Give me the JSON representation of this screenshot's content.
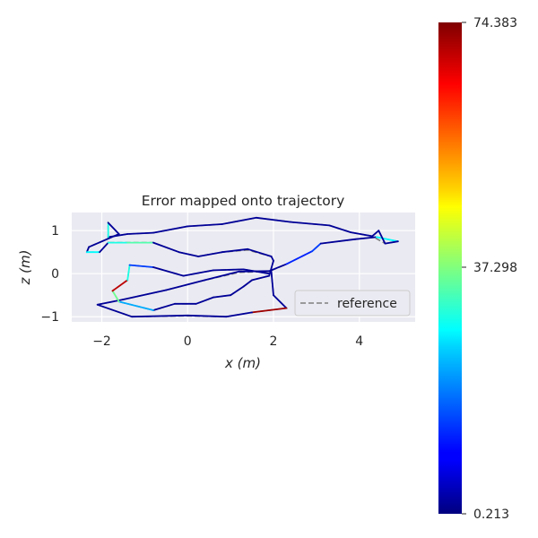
{
  "chart_data": {
    "type": "line",
    "title": "Error mapped onto trajectory",
    "xlabel": "x (m)",
    "ylabel": "z (m)",
    "xlim": [
      -2.7,
      5.3
    ],
    "ylim": [
      -1.12,
      1.42
    ],
    "xticks": [
      -2,
      0,
      2,
      4
    ],
    "xtick_labels": [
      "−2",
      "0",
      "2",
      "4"
    ],
    "yticks": [
      -1,
      0,
      1
    ],
    "ytick_labels": [
      "−1",
      "0",
      "1"
    ],
    "grid": true,
    "legend": {
      "placement": "lower-right",
      "entries": [
        {
          "label": "reference",
          "style": "dashed-gray"
        }
      ]
    },
    "colorbar": {
      "min": 0.213,
      "mid": 37.298,
      "max": 74.383,
      "tick_labels": [
        "74.383",
        "37.298",
        "0.213"
      ],
      "colormap": "jet"
    },
    "series": [
      {
        "name": "reference",
        "points": [
          [
            1.95,
            0.05
          ],
          [
            2.0,
            -0.5
          ],
          [
            2.3,
            -0.8
          ],
          [
            1.5,
            -0.9
          ],
          [
            0.9,
            -1.0
          ],
          [
            0.0,
            -0.98
          ],
          [
            -1.3,
            -1.0
          ],
          [
            -2.1,
            -0.72
          ],
          [
            -1.5,
            -0.6
          ],
          [
            -0.5,
            -0.38
          ],
          [
            0.4,
            -0.15
          ],
          [
            1.2,
            0.03
          ],
          [
            1.9,
            0.05
          ],
          [
            2.3,
            0.22
          ],
          [
            2.9,
            0.52
          ],
          [
            3.1,
            0.7
          ],
          [
            3.9,
            0.8
          ],
          [
            4.4,
            0.85
          ],
          [
            4.9,
            0.75
          ],
          [
            4.6,
            0.7
          ],
          [
            4.3,
            0.87
          ],
          [
            3.8,
            0.96
          ],
          [
            3.3,
            1.12
          ],
          [
            2.4,
            1.2
          ],
          [
            1.6,
            1.3
          ],
          [
            0.8,
            1.15
          ],
          [
            0.0,
            1.1
          ],
          [
            -0.8,
            0.95
          ],
          [
            -1.4,
            0.92
          ],
          [
            -1.85,
            0.85
          ],
          [
            -1.85,
            1.18
          ],
          [
            -1.6,
            0.92
          ],
          [
            -2.3,
            0.62
          ],
          [
            -2.35,
            0.5
          ],
          [
            -2.05,
            0.5
          ],
          [
            -1.85,
            0.72
          ],
          [
            -1.4,
            0.72
          ],
          [
            -0.8,
            0.72
          ],
          [
            -0.2,
            0.5
          ],
          [
            0.25,
            0.4
          ],
          [
            0.8,
            0.5
          ],
          [
            1.4,
            0.55
          ],
          [
            1.95,
            0.4
          ],
          [
            2.0,
            0.3
          ],
          [
            1.9,
            -0.05
          ],
          [
            1.5,
            -0.15
          ],
          [
            1.3,
            -0.3
          ],
          [
            1.0,
            -0.5
          ],
          [
            0.6,
            -0.55
          ],
          [
            0.2,
            -0.7
          ],
          [
            -0.3,
            -0.7
          ],
          [
            -0.8,
            -0.85
          ],
          [
            -1.6,
            -0.65
          ],
          [
            -1.75,
            -0.4
          ],
          [
            -1.4,
            -0.15
          ],
          [
            -1.35,
            0.2
          ],
          [
            -0.8,
            0.15
          ],
          [
            -0.1,
            -0.05
          ],
          [
            0.6,
            0.08
          ],
          [
            1.3,
            0.1
          ],
          [
            1.9,
            0.0
          ]
        ]
      },
      {
        "name": "",
        "points": [
          [
            1.95,
            0.05
          ],
          [
            2.0,
            -0.5
          ],
          [
            2.3,
            -0.8
          ],
          [
            1.5,
            -0.9
          ],
          [
            0.9,
            -1.0
          ],
          [
            0.0,
            -0.97
          ],
          [
            -1.3,
            -1.0
          ],
          [
            -2.1,
            -0.72
          ],
          [
            -1.5,
            -0.6
          ],
          [
            -0.5,
            -0.38
          ],
          [
            0.4,
            -0.15
          ],
          [
            1.2,
            0.05
          ],
          [
            1.9,
            0.06
          ],
          [
            2.3,
            0.22
          ],
          [
            2.9,
            0.52
          ],
          [
            3.1,
            0.7
          ],
          [
            3.9,
            0.8
          ],
          [
            4.4,
            0.85
          ],
          [
            4.9,
            0.75
          ],
          [
            4.6,
            0.7
          ],
          [
            4.45,
            1.0
          ],
          [
            4.3,
            0.87
          ],
          [
            3.8,
            0.96
          ],
          [
            3.3,
            1.12
          ],
          [
            2.4,
            1.2
          ],
          [
            1.6,
            1.3
          ],
          [
            0.8,
            1.15
          ],
          [
            0.0,
            1.1
          ],
          [
            -0.8,
            0.95
          ],
          [
            -1.4,
            0.92
          ],
          [
            -1.85,
            0.85
          ],
          [
            -1.85,
            1.18
          ],
          [
            -1.6,
            0.92
          ],
          [
            -2.3,
            0.62
          ],
          [
            -2.35,
            0.5
          ],
          [
            -2.05,
            0.5
          ],
          [
            -1.85,
            0.72
          ],
          [
            -1.4,
            0.72
          ],
          [
            -0.8,
            0.72
          ],
          [
            -0.2,
            0.5
          ],
          [
            0.25,
            0.4
          ],
          [
            0.8,
            0.5
          ],
          [
            1.4,
            0.57
          ],
          [
            1.95,
            0.4
          ],
          [
            2.0,
            0.3
          ],
          [
            1.9,
            -0.05
          ],
          [
            1.5,
            -0.15
          ],
          [
            1.3,
            -0.3
          ],
          [
            1.0,
            -0.5
          ],
          [
            0.6,
            -0.55
          ],
          [
            0.2,
            -0.7
          ],
          [
            -0.3,
            -0.7
          ],
          [
            -0.8,
            -0.85
          ],
          [
            -1.6,
            -0.65
          ],
          [
            -1.75,
            -0.4
          ],
          [
            -1.4,
            -0.15
          ],
          [
            -1.35,
            0.2
          ],
          [
            -0.8,
            0.15
          ],
          [
            -0.1,
            -0.05
          ],
          [
            0.6,
            0.08
          ],
          [
            1.3,
            0.1
          ],
          [
            1.9,
            0.0
          ]
        ],
        "errors": [
          2,
          2,
          72,
          2,
          2,
          2,
          2,
          2,
          2,
          2,
          2,
          2,
          2,
          12,
          14,
          2,
          2,
          28,
          2,
          2,
          2,
          2,
          2,
          2,
          2,
          2,
          2,
          2,
          2,
          2,
          30,
          2,
          2,
          2,
          28,
          2,
          30,
          34,
          2,
          2,
          2,
          2,
          2,
          2,
          2,
          2,
          2,
          2,
          2,
          2,
          2,
          2,
          22,
          36,
          70,
          30,
          14,
          2,
          2,
          2,
          2,
          2
        ]
      }
    ]
  }
}
